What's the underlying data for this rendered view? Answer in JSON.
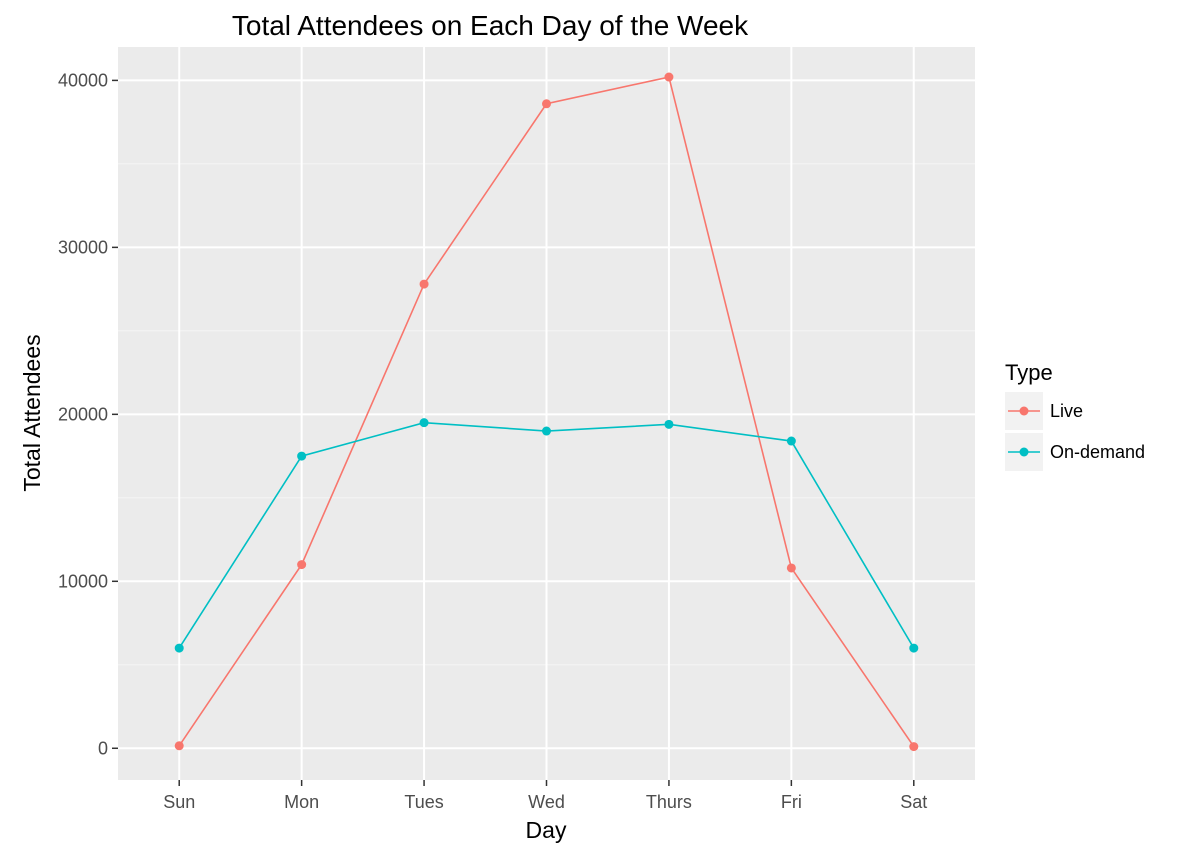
{
  "chart_data": {
    "type": "line",
    "title": "Total Attendees on Each Day of the Week",
    "xlabel": "Day",
    "ylabel": "Total Attendees",
    "categories": [
      "Sun",
      "Mon",
      "Tues",
      "Wed",
      "Thurs",
      "Fri",
      "Sat"
    ],
    "yticks": [
      0,
      10000,
      20000,
      30000,
      40000
    ],
    "ylim": [
      -1900,
      42000
    ],
    "grid": true,
    "legend": {
      "title": "Type",
      "position": "right"
    },
    "series": [
      {
        "name": "Live",
        "color": "#F8766D",
        "values": [
          150,
          11000,
          27800,
          38600,
          40200,
          10800,
          100
        ]
      },
      {
        "name": "On-demand",
        "color": "#00BFC4",
        "values": [
          6000,
          17500,
          19500,
          19000,
          19400,
          18400,
          6000
        ]
      }
    ]
  }
}
